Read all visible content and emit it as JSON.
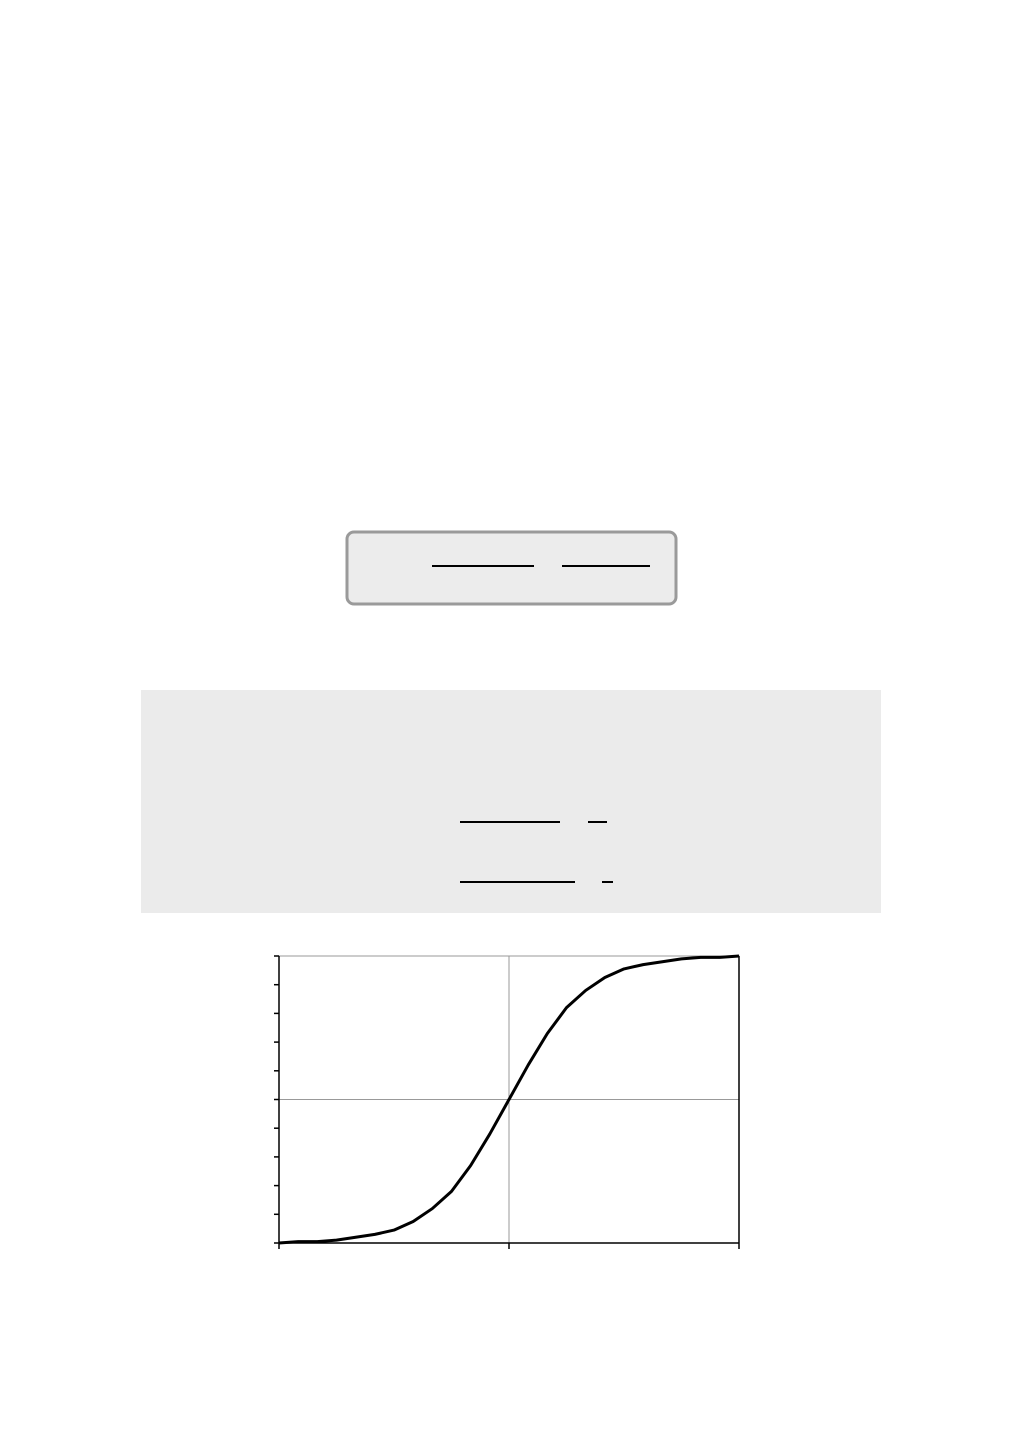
{
  "chart_data": {
    "type": "line",
    "x": [
      -3,
      -2.75,
      -2.5,
      -2.25,
      -2,
      -1.75,
      -1.5,
      -1.25,
      -1,
      -0.75,
      -0.5,
      -0.25,
      0,
      0.25,
      0.5,
      0.75,
      1,
      1.25,
      1.5,
      1.75,
      2,
      2.25,
      2.5,
      2.75,
      3
    ],
    "series": [
      {
        "color": "#000000",
        "values": [
          -1.0,
          -0.99,
          -0.99,
          -0.98,
          -0.96,
          -0.94,
          -0.91,
          -0.85,
          -0.76,
          -0.64,
          -0.46,
          -0.24,
          0,
          0.24,
          0.46,
          0.64,
          0.76,
          0.85,
          0.91,
          0.94,
          0.96,
          0.98,
          0.99,
          0.99,
          1.0
        ]
      }
    ],
    "xlim": [
      -3,
      3
    ],
    "xticks": [
      -3,
      0,
      3
    ],
    "ylim": [
      -1,
      1
    ],
    "yticks": [
      -1,
      -0.8,
      -0.6,
      -0.4,
      -0.2,
      0,
      0.2,
      0.4,
      0.6,
      0.8,
      1
    ]
  }
}
